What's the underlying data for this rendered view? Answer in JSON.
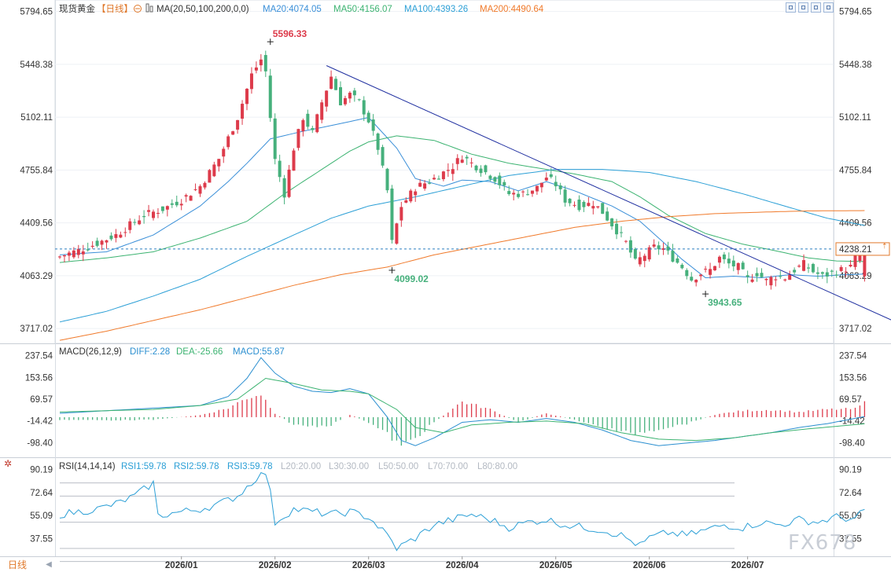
{
  "colors": {
    "up": "#dd3b4b",
    "down": "#46b07c",
    "ma20": "#3a8fd8",
    "ma50": "#3cb371",
    "ma100": "#2b9fd6",
    "ma200": "#f07a2b",
    "trendline": "#1f2fa0",
    "diff": "#2b8fd0",
    "dea": "#3cb371",
    "rsi": "#2b9fd6",
    "price_line": "#2b7fc0"
  },
  "legend": {
    "title": "现货黄金",
    "period": "【日线】",
    "ma_label": "MA(20,50,100,200,0,0)",
    "ma20": "MA20:4074.05",
    "ma50": "MA50:4156.07",
    "ma100": "MA100:4393.26",
    "ma200": "MA200:4490.64"
  },
  "macd_legend": {
    "title": "MACD(26,12,9)",
    "diff": "DIFF:2.28",
    "dea": "DEA:-25.66",
    "macd": "MACD:55.87"
  },
  "rsi_legend": {
    "title": "RSI(14,14,14)",
    "rsi1": "RSI1:59.78",
    "rsi2": "RSI2:59.78",
    "rsi3": "RSI3:59.78",
    "l20": "L20:20.00",
    "l30": "L30:30.00",
    "l50": "L50:50.00",
    "l70": "L70:70.00",
    "l80": "L80:80.00"
  },
  "footer": {
    "tab": "日线",
    "button": "◀"
  },
  "watermark": "FX678",
  "chart_data": [
    {
      "type": "candlestick",
      "title": "现货黄金",
      "y_ticks": [
        "5794.65",
        "5448.38",
        "5102.11",
        "4755.84",
        "4409.56",
        "4063.29",
        "3717.02"
      ],
      "y_tick_values": [
        5794.65,
        5448.38,
        5102.11,
        4755.84,
        4409.56,
        4063.29,
        3717.02
      ],
      "ylim": [
        3620,
        5870
      ],
      "x_ticks": [
        "2026/01",
        "2026/02",
        "2026/03",
        "2026/04",
        "2026/05",
        "2026/06",
        "2026/07"
      ],
      "x_tick_index": [
        26,
        46,
        66,
        86,
        106,
        126,
        147
      ],
      "last_price": "4238.21",
      "last_price_value": 4238.21,
      "annotations": [
        {
          "text": "5596.33",
          "index": 45,
          "value": 5596.33,
          "kind": "high"
        },
        {
          "text": "4099.02",
          "index": 71,
          "value": 4099.02,
          "kind": "low"
        },
        {
          "text": "3943.65",
          "index": 138,
          "value": 3943.65,
          "kind": "low"
        }
      ],
      "trendline": {
        "from": {
          "index": 57,
          "value": 5440
        },
        "to": {
          "index": 183,
          "value": 3700
        }
      },
      "ma_anchors": {
        "ma20": [
          [
            0,
            4200
          ],
          [
            10,
            4220
          ],
          [
            20,
            4330
          ],
          [
            30,
            4520
          ],
          [
            36,
            4680
          ],
          [
            40,
            4800
          ],
          [
            45,
            4960
          ],
          [
            52,
            5010
          ],
          [
            60,
            5060
          ],
          [
            66,
            5100
          ],
          [
            72,
            4900
          ],
          [
            76,
            4700
          ],
          [
            82,
            4650
          ],
          [
            86,
            4690
          ],
          [
            92,
            4680
          ],
          [
            98,
            4620
          ],
          [
            104,
            4680
          ],
          [
            110,
            4620
          ],
          [
            118,
            4520
          ],
          [
            124,
            4420
          ],
          [
            128,
            4310
          ],
          [
            133,
            4170
          ],
          [
            138,
            4050
          ],
          [
            144,
            4060
          ],
          [
            150,
            4050
          ],
          [
            156,
            4070
          ],
          [
            162,
            4060
          ],
          [
            168,
            4070
          ],
          [
            172,
            4074
          ]
        ],
        "ma50": [
          [
            0,
            4150
          ],
          [
            10,
            4180
          ],
          [
            20,
            4220
          ],
          [
            30,
            4310
          ],
          [
            40,
            4420
          ],
          [
            48,
            4600
          ],
          [
            56,
            4760
          ],
          [
            62,
            4880
          ],
          [
            66,
            4940
          ],
          [
            72,
            4980
          ],
          [
            80,
            4950
          ],
          [
            88,
            4860
          ],
          [
            96,
            4800
          ],
          [
            104,
            4760
          ],
          [
            110,
            4730
          ],
          [
            118,
            4680
          ],
          [
            124,
            4580
          ],
          [
            130,
            4460
          ],
          [
            138,
            4340
          ],
          [
            146,
            4270
          ],
          [
            154,
            4220
          ],
          [
            160,
            4180
          ],
          [
            166,
            4160
          ],
          [
            172,
            4156
          ]
        ],
        "ma100": [
          [
            0,
            3760
          ],
          [
            10,
            3830
          ],
          [
            20,
            3930
          ],
          [
            30,
            4040
          ],
          [
            40,
            4190
          ],
          [
            50,
            4330
          ],
          [
            58,
            4440
          ],
          [
            66,
            4520
          ],
          [
            76,
            4580
          ],
          [
            86,
            4650
          ],
          [
            96,
            4720
          ],
          [
            106,
            4760
          ],
          [
            116,
            4760
          ],
          [
            126,
            4740
          ],
          [
            136,
            4680
          ],
          [
            146,
            4600
          ],
          [
            156,
            4510
          ],
          [
            164,
            4440
          ],
          [
            172,
            4393
          ]
        ],
        "ma200": [
          [
            0,
            3640
          ],
          [
            10,
            3700
          ],
          [
            20,
            3770
          ],
          [
            30,
            3840
          ],
          [
            40,
            3920
          ],
          [
            50,
            4000
          ],
          [
            60,
            4070
          ],
          [
            70,
            4120
          ],
          [
            80,
            4200
          ],
          [
            90,
            4260
          ],
          [
            100,
            4320
          ],
          [
            110,
            4380
          ],
          [
            120,
            4420
          ],
          [
            130,
            4450
          ],
          [
            140,
            4470
          ],
          [
            150,
            4480
          ],
          [
            160,
            4488
          ],
          [
            172,
            4490
          ]
        ]
      },
      "close_anchors": [
        [
          0,
          4190
        ],
        [
          6,
          4250
        ],
        [
          12,
          4330
        ],
        [
          18,
          4460
        ],
        [
          22,
          4500
        ],
        [
          26,
          4560
        ],
        [
          30,
          4650
        ],
        [
          34,
          4830
        ],
        [
          38,
          5100
        ],
        [
          41,
          5380
        ],
        [
          43,
          5480
        ],
        [
          44,
          5400
        ],
        [
          45,
          5100
        ],
        [
          46,
          4820
        ],
        [
          48,
          4600
        ],
        [
          50,
          4900
        ],
        [
          52,
          5100
        ],
        [
          54,
          5000
        ],
        [
          56,
          5200
        ],
        [
          58,
          5370
        ],
        [
          60,
          5200
        ],
        [
          62,
          5250
        ],
        [
          64,
          5200
        ],
        [
          66,
          5080
        ],
        [
          68,
          4900
        ],
        [
          70,
          4620
        ],
        [
          71,
          4280
        ],
        [
          73,
          4520
        ],
        [
          76,
          4640
        ],
        [
          80,
          4700
        ],
        [
          84,
          4780
        ],
        [
          86,
          4850
        ],
        [
          88,
          4800
        ],
        [
          90,
          4760
        ],
        [
          93,
          4700
        ],
        [
          96,
          4600
        ],
        [
          99,
          4600
        ],
        [
          102,
          4640
        ],
        [
          104,
          4710
        ],
        [
          106,
          4660
        ],
        [
          108,
          4560
        ],
        [
          111,
          4520
        ],
        [
          114,
          4540
        ],
        [
          116,
          4480
        ],
        [
          118,
          4400
        ],
        [
          121,
          4280
        ],
        [
          123,
          4150
        ],
        [
          125,
          4200
        ],
        [
          127,
          4250
        ],
        [
          129,
          4240
        ],
        [
          131,
          4180
        ],
        [
          133,
          4120
        ],
        [
          135,
          4040
        ],
        [
          137,
          4080
        ],
        [
          139,
          4100
        ],
        [
          141,
          4180
        ],
        [
          143,
          4140
        ],
        [
          145,
          4120
        ],
        [
          147,
          4040
        ],
        [
          149,
          4080
        ],
        [
          151,
          4030
        ],
        [
          153,
          4060
        ],
        [
          155,
          4050
        ],
        [
          157,
          4100
        ],
        [
          159,
          4140
        ],
        [
          161,
          4090
        ],
        [
          163,
          4060
        ],
        [
          165,
          4080
        ],
        [
          167,
          4100
        ],
        [
          169,
          4120
        ],
        [
          171,
          4238
        ],
        [
          172,
          4238
        ]
      ],
      "series_order": [
        "ma20",
        "ma50",
        "ma100",
        "ma200"
      ]
    },
    {
      "type": "macd",
      "title": "MACD(26,12,9)",
      "y_ticks": [
        "237.54",
        "153.56",
        "69.57",
        "-14.42",
        "-98.40"
      ],
      "y_tick_values": [
        237.54,
        153.56,
        69.57,
        -14.42,
        -98.4
      ],
      "ylim": [
        -155,
        270
      ],
      "diff_anchors": [
        [
          0,
          15
        ],
        [
          10,
          25
        ],
        [
          20,
          35
        ],
        [
          30,
          45
        ],
        [
          36,
          80
        ],
        [
          40,
          150
        ],
        [
          43,
          230
        ],
        [
          46,
          170
        ],
        [
          50,
          120
        ],
        [
          54,
          100
        ],
        [
          58,
          95
        ],
        [
          62,
          110
        ],
        [
          66,
          90
        ],
        [
          70,
          0
        ],
        [
          73,
          -90
        ],
        [
          76,
          -110
        ],
        [
          80,
          -80
        ],
        [
          86,
          -20
        ],
        [
          92,
          -10
        ],
        [
          98,
          -20
        ],
        [
          104,
          -5
        ],
        [
          110,
          -20
        ],
        [
          116,
          -50
        ],
        [
          122,
          -90
        ],
        [
          128,
          -110
        ],
        [
          134,
          -100
        ],
        [
          140,
          -90
        ],
        [
          146,
          -75
        ],
        [
          152,
          -60
        ],
        [
          158,
          -40
        ],
        [
          164,
          -25
        ],
        [
          172,
          2.28
        ]
      ],
      "dea_anchors": [
        [
          0,
          20
        ],
        [
          10,
          25
        ],
        [
          20,
          30
        ],
        [
          30,
          45
        ],
        [
          38,
          70
        ],
        [
          44,
          150
        ],
        [
          50,
          130
        ],
        [
          56,
          105
        ],
        [
          62,
          100
        ],
        [
          66,
          90
        ],
        [
          72,
          30
        ],
        [
          76,
          -40
        ],
        [
          82,
          -60
        ],
        [
          88,
          -30
        ],
        [
          96,
          -20
        ],
        [
          104,
          -15
        ],
        [
          112,
          -25
        ],
        [
          120,
          -60
        ],
        [
          128,
          -85
        ],
        [
          136,
          -90
        ],
        [
          144,
          -80
        ],
        [
          152,
          -60
        ],
        [
          160,
          -45
        ],
        [
          168,
          -32
        ],
        [
          172,
          -25.66
        ]
      ],
      "hist_anchors": [
        [
          0,
          -10
        ],
        [
          10,
          -12
        ],
        [
          20,
          -10
        ],
        [
          30,
          8
        ],
        [
          36,
          35
        ],
        [
          40,
          75
        ],
        [
          43,
          90
        ],
        [
          46,
          15
        ],
        [
          50,
          -30
        ],
        [
          54,
          -35
        ],
        [
          58,
          -30
        ],
        [
          62,
          10
        ],
        [
          66,
          -20
        ],
        [
          70,
          -65
        ],
        [
          73,
          -115
        ],
        [
          76,
          -80
        ],
        [
          80,
          -20
        ],
        [
          86,
          60
        ],
        [
          92,
          30
        ],
        [
          98,
          -20
        ],
        [
          104,
          15
        ],
        [
          110,
          -10
        ],
        [
          116,
          -40
        ],
        [
          122,
          -65
        ],
        [
          128,
          -45
        ],
        [
          134,
          -25
        ],
        [
          140,
          10
        ],
        [
          146,
          25
        ],
        [
          152,
          28
        ],
        [
          158,
          20
        ],
        [
          164,
          30
        ],
        [
          170,
          32
        ],
        [
          172,
          55.87
        ]
      ]
    },
    {
      "type": "line",
      "title": "RSI(14,14,14)",
      "y_ticks": [
        "90.19",
        "72.64",
        "55.09",
        "37.55"
      ],
      "y_tick_values": [
        90.19,
        72.64,
        55.09,
        37.55
      ],
      "ylim": [
        24,
        96
      ],
      "reference_levels": [
        80,
        70,
        50,
        30,
        20
      ],
      "rsi_anchors": [
        [
          0,
          56
        ],
        [
          8,
          60
        ],
        [
          12,
          64
        ],
        [
          16,
          70
        ],
        [
          20,
          80
        ],
        [
          21,
          55
        ],
        [
          26,
          58
        ],
        [
          30,
          60
        ],
        [
          34,
          64
        ],
        [
          38,
          70
        ],
        [
          42,
          84
        ],
        [
          44,
          88
        ],
        [
          45,
          72
        ],
        [
          46,
          50
        ],
        [
          50,
          60
        ],
        [
          54,
          58
        ],
        [
          58,
          56
        ],
        [
          62,
          58
        ],
        [
          66,
          54
        ],
        [
          70,
          40
        ],
        [
          72,
          30
        ],
        [
          76,
          38
        ],
        [
          80,
          48
        ],
        [
          84,
          52
        ],
        [
          88,
          56
        ],
        [
          92,
          52
        ],
        [
          96,
          46
        ],
        [
          100,
          50
        ],
        [
          104,
          52
        ],
        [
          108,
          48
        ],
        [
          112,
          46
        ],
        [
          116,
          44
        ],
        [
          120,
          40
        ],
        [
          124,
          32
        ],
        [
          126,
          38
        ],
        [
          130,
          42
        ],
        [
          134,
          40
        ],
        [
          138,
          44
        ],
        [
          142,
          48
        ],
        [
          146,
          46
        ],
        [
          150,
          50
        ],
        [
          154,
          48
        ],
        [
          158,
          52
        ],
        [
          162,
          50
        ],
        [
          166,
          54
        ],
        [
          170,
          52
        ],
        [
          172,
          59.78
        ]
      ]
    }
  ]
}
